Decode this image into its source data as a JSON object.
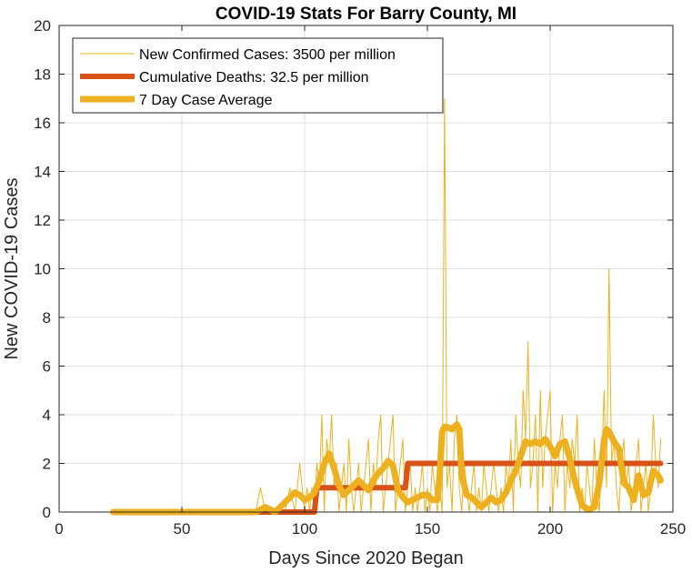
{
  "chart_data": {
    "type": "line",
    "title": "COVID-19 Stats For Barry County, MI",
    "xlabel": "Days Since 2020 Began",
    "ylabel": "New COVID-19 Cases",
    "xlim": [
      0,
      250
    ],
    "ylim": [
      0,
      20
    ],
    "xticks": [
      0,
      50,
      100,
      150,
      200,
      250
    ],
    "yticks": [
      0,
      2,
      4,
      6,
      8,
      10,
      12,
      14,
      16,
      18,
      20
    ],
    "grid": true,
    "legend_position": "top-left",
    "series": [
      {
        "name": "New Confirmed Cases: 3500 per million",
        "color": "#EDB120",
        "style": "thin",
        "x": [
          22,
          30,
          40,
          50,
          60,
          70,
          80,
          82,
          84,
          86,
          88,
          90,
          92,
          94,
          96,
          98,
          99,
          100,
          101,
          102,
          103,
          104,
          105,
          106,
          107,
          108,
          109,
          110,
          111,
          112,
          113,
          114,
          115,
          116,
          117,
          118,
          119,
          120,
          121,
          122,
          123,
          124,
          125,
          126,
          127,
          128,
          129,
          130,
          131,
          132,
          133,
          134,
          135,
          136,
          137,
          138,
          139,
          140,
          141,
          142,
          143,
          144,
          145,
          146,
          147,
          148,
          149,
          150,
          151,
          152,
          153,
          154,
          155,
          156,
          157,
          158,
          159,
          160,
          161,
          162,
          163,
          164,
          165,
          166,
          167,
          168,
          169,
          170,
          171,
          172,
          173,
          174,
          175,
          176,
          177,
          178,
          179,
          180,
          181,
          182,
          183,
          184,
          185,
          186,
          187,
          188,
          189,
          190,
          191,
          192,
          193,
          194,
          195,
          196,
          197,
          198,
          199,
          200,
          201,
          202,
          203,
          204,
          205,
          206,
          207,
          208,
          209,
          210,
          211,
          212,
          213,
          214,
          215,
          216,
          217,
          218,
          219,
          220,
          221,
          222,
          223,
          224,
          225,
          226,
          227,
          228,
          229,
          230,
          231,
          232,
          233,
          234,
          235,
          236,
          237,
          238,
          239,
          240,
          241,
          242,
          243,
          244,
          245
        ],
        "values": [
          0,
          0,
          0,
          0,
          0,
          0,
          0,
          1,
          0,
          0,
          0,
          0,
          0,
          1,
          0,
          2,
          1,
          0,
          1,
          0,
          1,
          0,
          2,
          1,
          4,
          0,
          3,
          2,
          4,
          1,
          2,
          0,
          1,
          2,
          0,
          3,
          1,
          0,
          1,
          2,
          0,
          1,
          2,
          3,
          0,
          2,
          1,
          3,
          4,
          0,
          1,
          2,
          3,
          4,
          0,
          1,
          2,
          3,
          0,
          1,
          2,
          0,
          1,
          0,
          1,
          2,
          0,
          1,
          0,
          2,
          1,
          0,
          1,
          0,
          17,
          1,
          2,
          0,
          3,
          4,
          1,
          0,
          2,
          1,
          0,
          1,
          2,
          0,
          1,
          0,
          2,
          1,
          0,
          1,
          2,
          1,
          0,
          1,
          0,
          2,
          1,
          3,
          0,
          4,
          2,
          1,
          5,
          3,
          7,
          1,
          2,
          4,
          0,
          5,
          1,
          3,
          4,
          5,
          0,
          2,
          1,
          3,
          4,
          0,
          2,
          1,
          3,
          2,
          4,
          0,
          1,
          0,
          2,
          1,
          0,
          3,
          1,
          0,
          2,
          5,
          1,
          10,
          2,
          3,
          1,
          0,
          2,
          3,
          1,
          2,
          0,
          1,
          2,
          3,
          0,
          1,
          2,
          0,
          1,
          4,
          2,
          1,
          3
        ]
      },
      {
        "name": "Cumulative Deaths: 32.5 per million",
        "color": "#D95319",
        "style": "thick-step",
        "x": [
          22,
          104,
          105,
          141,
          142,
          245
        ],
        "values": [
          0,
          0,
          1,
          1,
          2,
          2
        ]
      },
      {
        "name": "7 Day Case Average",
        "color": "#EDB120",
        "style": "thick",
        "x": [
          22,
          30,
          40,
          50,
          60,
          70,
          80,
          82,
          84,
          86,
          88,
          90,
          92,
          94,
          96,
          98,
          100,
          102,
          104,
          106,
          108,
          109,
          110,
          112,
          114,
          116,
          118,
          120,
          122,
          124,
          126,
          128,
          130,
          132,
          134,
          136,
          138,
          140,
          142,
          144,
          146,
          148,
          150,
          152,
          154,
          155,
          156,
          157,
          158,
          160,
          162,
          163,
          164,
          166,
          168,
          170,
          172,
          174,
          176,
          178,
          180,
          182,
          184,
          186,
          188,
          190,
          192,
          194,
          196,
          198,
          200,
          202,
          204,
          206,
          208,
          210,
          212,
          213,
          214,
          216,
          218,
          220,
          222,
          223,
          224,
          226,
          228,
          230,
          232,
          234,
          236,
          238,
          240,
          242,
          244,
          245
        ],
        "values": [
          0,
          0,
          0,
          0,
          0,
          0,
          0,
          0.1,
          0.2,
          0.1,
          0,
          0.2,
          0.4,
          0.6,
          0.8,
          0.7,
          0.5,
          0.6,
          0.8,
          1.3,
          2.0,
          2.2,
          2.4,
          1.8,
          1.1,
          0.7,
          0.9,
          1.1,
          1.3,
          1.1,
          0.9,
          1.3,
          1.6,
          1.8,
          2.1,
          1.9,
          0.9,
          0.6,
          0.4,
          0.5,
          0.6,
          0.7,
          0.7,
          0.5,
          0.5,
          1.5,
          3.3,
          3.5,
          3.5,
          3.4,
          3.6,
          3.4,
          1.5,
          0.7,
          0.6,
          0.4,
          0.2,
          0.4,
          0.6,
          0.4,
          0.5,
          0.8,
          1.3,
          1.7,
          2.3,
          2.9,
          2.8,
          2.9,
          2.8,
          3.0,
          2.7,
          2.3,
          2.8,
          2.9,
          2.2,
          1.3,
          0.6,
          0.3,
          0.2,
          0.1,
          0.2,
          1.2,
          3.0,
          3.4,
          3.3,
          2.9,
          2.6,
          1.2,
          1.0,
          0.5,
          1.5,
          0.7,
          0.8,
          1.7,
          1.5,
          1.3
        ]
      }
    ]
  }
}
